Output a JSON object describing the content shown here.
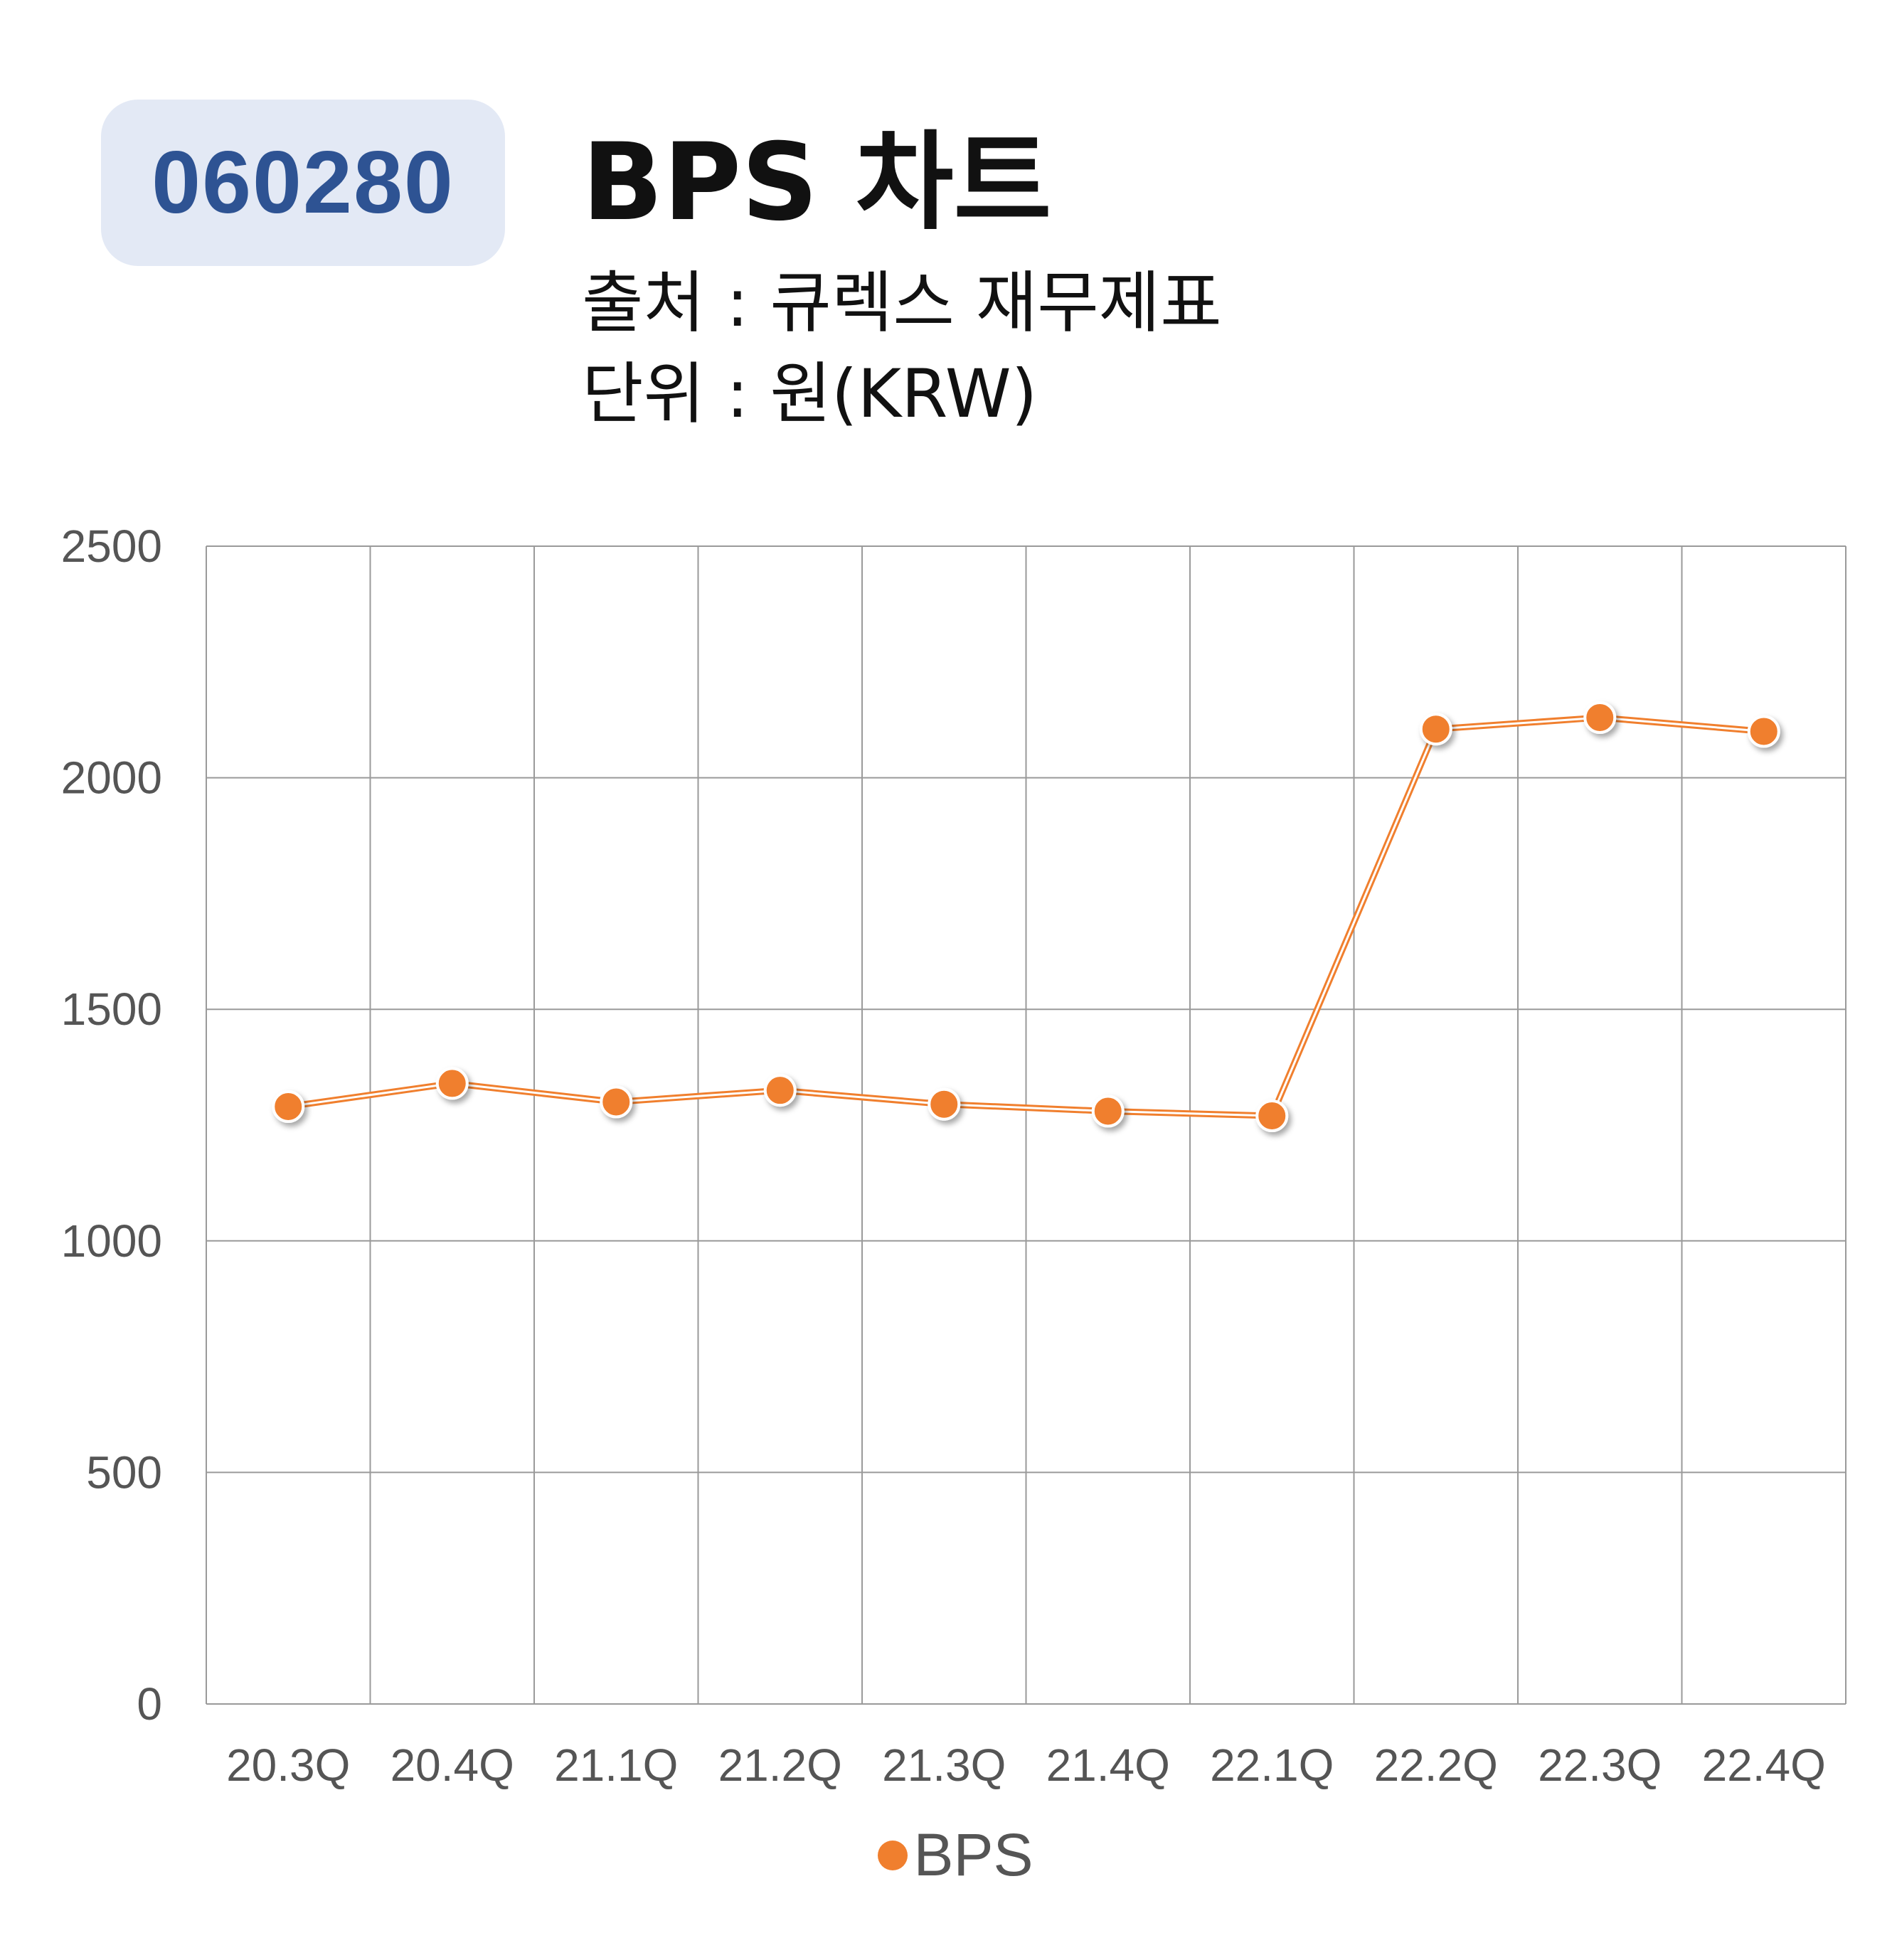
{
  "header": {
    "ticker": "060280",
    "title": "BPS 차트",
    "source": "출처 : 큐렉스 재무제표",
    "unit": "단위 : 원(KRW)"
  },
  "colors": {
    "series": "#f07f2e",
    "badge_bg": "#e3e9f5",
    "badge_text": "#2e5393",
    "grid": "#9a9a9a"
  },
  "chart_data": {
    "type": "line",
    "categories": [
      "20.3Q",
      "20.4Q",
      "21.1Q",
      "21.2Q",
      "21.3Q",
      "21.4Q",
      "22.1Q",
      "22.2Q",
      "22.3Q",
      "22.4Q"
    ],
    "series": [
      {
        "name": "BPS",
        "values": [
          1290,
          1340,
          1300,
          1325,
          1295,
          1280,
          1270,
          2105,
          2130,
          2100
        ]
      }
    ],
    "ylim": [
      0,
      2500
    ],
    "yticks": [
      0,
      500,
      1000,
      1500,
      2000,
      2500
    ],
    "grid": true,
    "legend_position": "bottom-center"
  }
}
